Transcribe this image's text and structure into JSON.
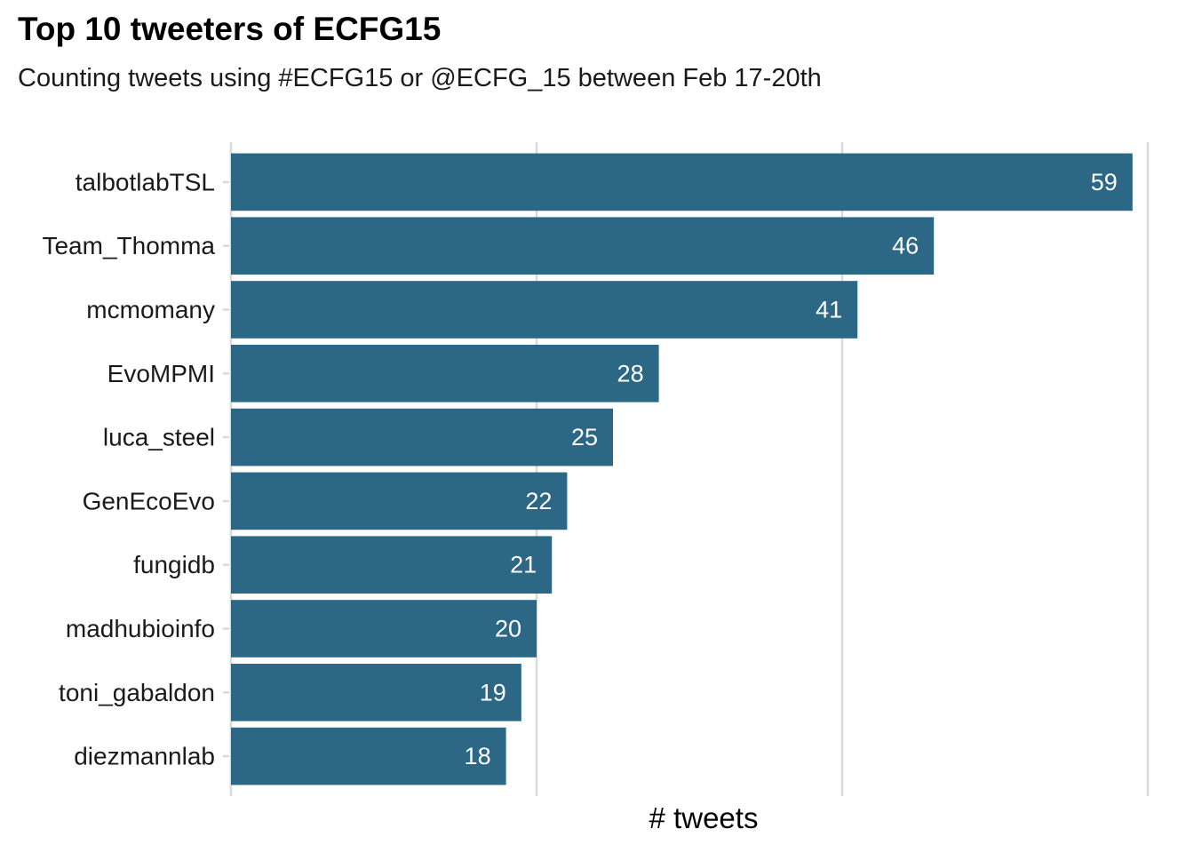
{
  "chart_data": {
    "type": "bar",
    "orientation": "horizontal",
    "title": "Top 10 tweeters of ECFG15",
    "subtitle": "Counting tweets using #ECFG15 or @ECFG_15 between Feb 17-20th",
    "xlabel": "# tweets",
    "ylabel": "",
    "categories": [
      "talbotlabTSL",
      "Team_Thomma",
      "mcmomany",
      "EvoMPMI",
      "luca_steel",
      "GenEcoEvo",
      "fungidb",
      "madhubioinfo",
      "toni_gabaldon",
      "diezmannlab"
    ],
    "values": [
      59,
      46,
      41,
      28,
      25,
      22,
      21,
      20,
      19,
      18
    ],
    "xlim": [
      0,
      60
    ],
    "x_gridlines": [
      0,
      20,
      40,
      60
    ],
    "grid": "vertical major",
    "x_tick_labels_shown": false,
    "bar_color": "#2c6886",
    "value_label_color": "#ffffff",
    "grid_color": "#d9d9d9"
  }
}
